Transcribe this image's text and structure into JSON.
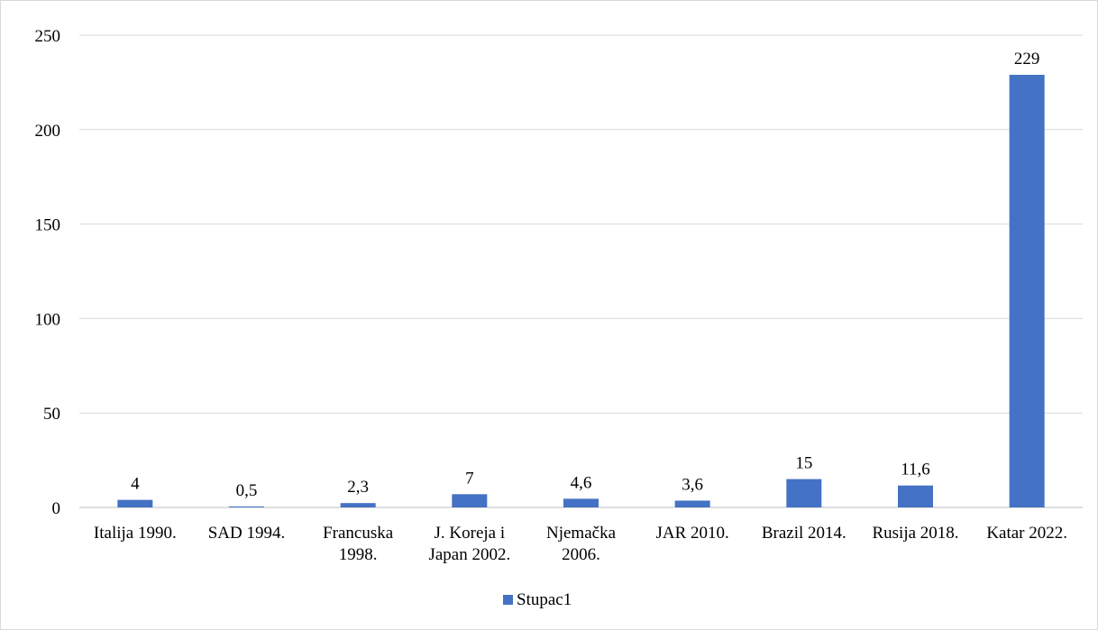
{
  "chart_data": {
    "type": "bar",
    "title": "",
    "xlabel": "",
    "ylabel": "",
    "categories": [
      [
        "Italija 1990."
      ],
      [
        "SAD 1994."
      ],
      [
        "Francuska",
        "1998."
      ],
      [
        "J. Koreja i",
        "Japan 2002."
      ],
      [
        "Njemačka",
        "2006."
      ],
      [
        "JAR 2010."
      ],
      [
        "Brazil 2014."
      ],
      [
        "Rusija 2018."
      ],
      [
        "Katar 2022."
      ]
    ],
    "series": [
      {
        "name": "Stupac1",
        "color": "#4472c4",
        "values": [
          4,
          0.5,
          2.3,
          7,
          4.6,
          3.6,
          15,
          11.6,
          229
        ],
        "value_labels": [
          "4",
          "0,5",
          "2,3",
          "7",
          "4,6",
          "3,6",
          "15",
          "11,6",
          "229"
        ]
      }
    ],
    "ylim": [
      0,
      250
    ],
    "yticks": [
      0,
      50,
      100,
      150,
      200,
      250
    ],
    "grid": true,
    "legend": "bottom"
  }
}
